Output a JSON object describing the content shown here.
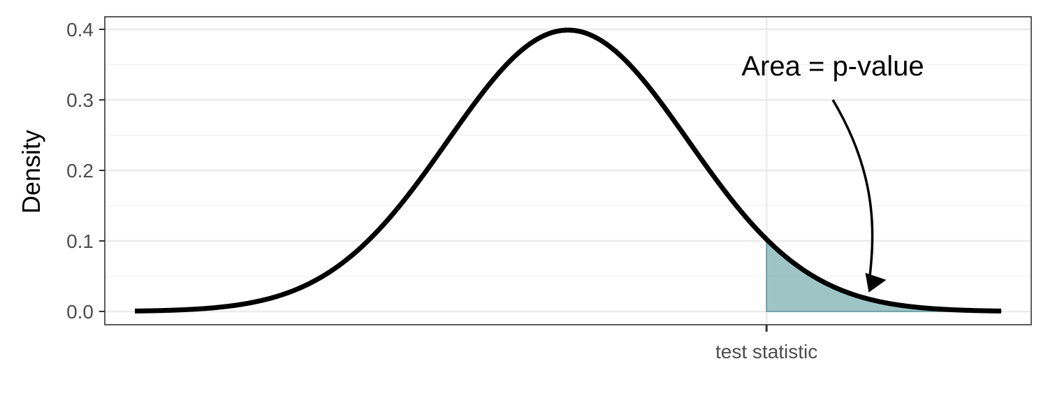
{
  "chart_data": {
    "type": "area",
    "title": "",
    "xlabel": "",
    "ylabel": "Density",
    "distribution": "standard normal density",
    "xlim": [
      -3.85,
      3.85
    ],
    "ylim": [
      0,
      0.4
    ],
    "y_ticks": [
      {
        "value": 0.0,
        "label": "0.0"
      },
      {
        "value": 0.1,
        "label": "0.1"
      },
      {
        "value": 0.2,
        "label": "0.2"
      },
      {
        "value": 0.3,
        "label": "0.3"
      },
      {
        "value": 0.4,
        "label": "0.4"
      }
    ],
    "x_ticks": [
      {
        "value": 1.65,
        "label": "test statistic"
      }
    ],
    "curve": {
      "x": [
        -3.6,
        -3.2,
        -2.8,
        -2.4,
        -2.0,
        -1.6,
        -1.2,
        -0.8,
        -0.4,
        0.0,
        0.4,
        0.8,
        1.2,
        1.6,
        1.65,
        2.0,
        2.4,
        2.8,
        3.2,
        3.6
      ],
      "y": [
        0.0006,
        0.0024,
        0.0079,
        0.0224,
        0.054,
        0.1109,
        0.1942,
        0.2897,
        0.3683,
        0.3989,
        0.3683,
        0.2897,
        0.1942,
        0.1109,
        0.1023,
        0.054,
        0.0224,
        0.0079,
        0.0024,
        0.0006
      ]
    },
    "shaded_region": {
      "from_x": 1.65,
      "to_x": 3.6,
      "label": "Area = p-value"
    },
    "annotation": {
      "text": "Area = p-value",
      "points_to": {
        "x": 2.5,
        "y": 0.03
      }
    },
    "grid": true,
    "legend": "none",
    "colors": {
      "curve": "#000000",
      "fill": "#6aa5a8",
      "grid": "#ebebeb",
      "panel_border": "#333333"
    }
  }
}
